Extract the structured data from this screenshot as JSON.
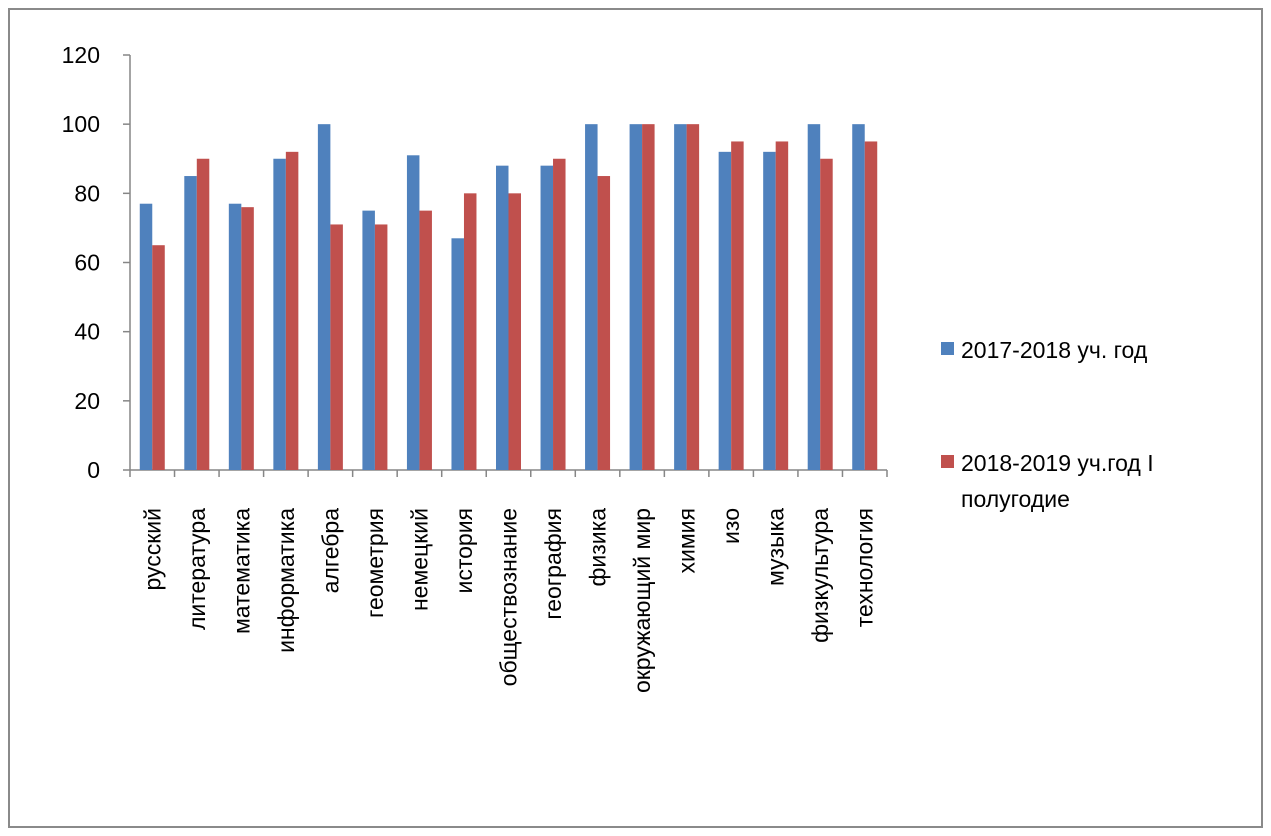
{
  "chart_data": {
    "type": "bar",
    "categories": [
      "русский",
      "литература",
      "математика",
      "информатика",
      "алгебра",
      "геометрия",
      "немецкий",
      "история",
      "обществознание",
      "география",
      "физика",
      "окружающий мир",
      "химия",
      "изо",
      "музыка",
      "физкультура",
      "технология"
    ],
    "series": [
      {
        "name": "2017-2018 уч. год",
        "color": "#4f81bd",
        "values": [
          77,
          85,
          77,
          90,
          100,
          75,
          91,
          67,
          88,
          88,
          100,
          100,
          100,
          92,
          92,
          100,
          100
        ]
      },
      {
        "name": "2018-2019 уч.год I полугодие",
        "color": "#c0504d",
        "values": [
          65,
          90,
          76,
          92,
          71,
          71,
          75,
          80,
          80,
          90,
          85,
          100,
          100,
          95,
          95,
          90,
          95
        ]
      }
    ],
    "yticks": [
      "0",
      "20",
      "40",
      "60",
      "80",
      "100",
      "120"
    ],
    "ylim": [
      0,
      120
    ],
    "grid": false,
    "legend_position": "right"
  }
}
